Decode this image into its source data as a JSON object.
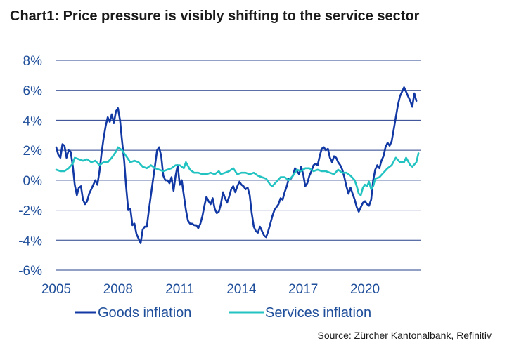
{
  "title": "Chart1: Price pressure is visibly shifting to the service sector",
  "source": "Source: Zürcher Kantonalbank, Refinitiv",
  "colors": {
    "goods": "#1238a4",
    "services": "#22c3c1",
    "grid": "#27408b",
    "text": "#1f4e9a"
  },
  "chart_data": {
    "type": "line",
    "title": "Chart1: Price pressure is visibly shifting to the service sector",
    "xlabel": "",
    "ylabel": "",
    "x_unit": "year",
    "xlim": [
      2005,
      2022.7
    ],
    "ylim": [
      -6,
      8
    ],
    "x_ticks": [
      2005,
      2008,
      2011,
      2014,
      2017,
      2020
    ],
    "x_tick_labels": [
      "2005",
      "2008",
      "2011",
      "2014",
      "2017",
      "2020"
    ],
    "y_ticks": [
      -6,
      -4,
      -2,
      0,
      2,
      4,
      6,
      8
    ],
    "y_tick_labels": [
      "-6%",
      "-4%",
      "-2%",
      "0%",
      "2%",
      "4%",
      "6%",
      "8%"
    ],
    "grid": "horizontal",
    "legend": "bottom",
    "series": [
      {
        "name": "Goods inflation",
        "color": "#1238a4",
        "points": [
          [
            2005.0,
            2.2
          ],
          [
            2005.1,
            1.7
          ],
          [
            2005.2,
            1.5
          ],
          [
            2005.3,
            2.4
          ],
          [
            2005.4,
            2.3
          ],
          [
            2005.5,
            1.5
          ],
          [
            2005.6,
            2.0
          ],
          [
            2005.7,
            1.9
          ],
          [
            2005.8,
            1.0
          ],
          [
            2005.9,
            -0.3
          ],
          [
            2006.0,
            -1.0
          ],
          [
            2006.1,
            -0.5
          ],
          [
            2006.2,
            -0.4
          ],
          [
            2006.3,
            -1.3
          ],
          [
            2006.4,
            -1.6
          ],
          [
            2006.5,
            -1.4
          ],
          [
            2006.6,
            -0.9
          ],
          [
            2006.7,
            -0.6
          ],
          [
            2006.8,
            -0.3
          ],
          [
            2006.9,
            0.0
          ],
          [
            2007.0,
            -0.3
          ],
          [
            2007.1,
            0.6
          ],
          [
            2007.2,
            1.8
          ],
          [
            2007.3,
            2.8
          ],
          [
            2007.4,
            3.6
          ],
          [
            2007.5,
            4.2
          ],
          [
            2007.6,
            3.9
          ],
          [
            2007.7,
            4.4
          ],
          [
            2007.8,
            3.8
          ],
          [
            2007.9,
            4.6
          ],
          [
            2008.0,
            4.8
          ],
          [
            2008.1,
            4.0
          ],
          [
            2008.2,
            2.6
          ],
          [
            2008.3,
            1.3
          ],
          [
            2008.4,
            -0.5
          ],
          [
            2008.5,
            -2.0
          ],
          [
            2008.6,
            -1.9
          ],
          [
            2008.7,
            -3.0
          ],
          [
            2008.8,
            -2.9
          ],
          [
            2008.9,
            -3.6
          ],
          [
            2009.0,
            -3.9
          ],
          [
            2009.1,
            -4.2
          ],
          [
            2009.2,
            -3.3
          ],
          [
            2009.3,
            -3.1
          ],
          [
            2009.4,
            -3.1
          ],
          [
            2009.5,
            -2.0
          ],
          [
            2009.6,
            -1.0
          ],
          [
            2009.7,
            0.0
          ],
          [
            2009.8,
            1.0
          ],
          [
            2009.9,
            2.0
          ],
          [
            2010.0,
            2.2
          ],
          [
            2010.1,
            1.6
          ],
          [
            2010.2,
            0.3
          ],
          [
            2010.3,
            0.0
          ],
          [
            2010.4,
            0.0
          ],
          [
            2010.5,
            -0.2
          ],
          [
            2010.6,
            0.2
          ],
          [
            2010.7,
            -0.7
          ],
          [
            2010.8,
            0.3
          ],
          [
            2010.9,
            1.0
          ],
          [
            2011.0,
            -0.3
          ],
          [
            2011.1,
            0.0
          ],
          [
            2011.2,
            -1.0
          ],
          [
            2011.3,
            -2.0
          ],
          [
            2011.4,
            -2.7
          ],
          [
            2011.5,
            -2.9
          ],
          [
            2011.6,
            -2.9
          ],
          [
            2011.7,
            -3.0
          ],
          [
            2011.8,
            -3.0
          ],
          [
            2011.9,
            -3.2
          ],
          [
            2012.0,
            -2.9
          ],
          [
            2012.1,
            -2.4
          ],
          [
            2012.2,
            -1.7
          ],
          [
            2012.3,
            -1.1
          ],
          [
            2012.4,
            -1.4
          ],
          [
            2012.5,
            -1.6
          ],
          [
            2012.6,
            -1.2
          ],
          [
            2012.7,
            -1.9
          ],
          [
            2012.8,
            -2.2
          ],
          [
            2012.9,
            -2.1
          ],
          [
            2013.0,
            -1.6
          ],
          [
            2013.1,
            -0.8
          ],
          [
            2013.2,
            -1.2
          ],
          [
            2013.3,
            -1.5
          ],
          [
            2013.4,
            -1.1
          ],
          [
            2013.5,
            -0.6
          ],
          [
            2013.6,
            -0.4
          ],
          [
            2013.7,
            -0.8
          ],
          [
            2013.8,
            -0.4
          ],
          [
            2013.9,
            -0.1
          ],
          [
            2014.0,
            -0.3
          ],
          [
            2014.1,
            -0.4
          ],
          [
            2014.2,
            -0.6
          ],
          [
            2014.3,
            -0.5
          ],
          [
            2014.4,
            -1.0
          ],
          [
            2014.5,
            -2.2
          ],
          [
            2014.6,
            -3.1
          ],
          [
            2014.7,
            -3.4
          ],
          [
            2014.8,
            -3.5
          ],
          [
            2014.9,
            -3.1
          ],
          [
            2015.0,
            -3.4
          ],
          [
            2015.1,
            -3.7
          ],
          [
            2015.2,
            -3.8
          ],
          [
            2015.3,
            -3.4
          ],
          [
            2015.4,
            -2.9
          ],
          [
            2015.5,
            -2.4
          ],
          [
            2015.6,
            -2.0
          ],
          [
            2015.7,
            -1.8
          ],
          [
            2015.8,
            -1.6
          ],
          [
            2015.9,
            -1.2
          ],
          [
            2016.0,
            -1.3
          ],
          [
            2016.1,
            -0.8
          ],
          [
            2016.2,
            -0.4
          ],
          [
            2016.3,
            0.1
          ],
          [
            2016.4,
            0.1
          ],
          [
            2016.5,
            0.3
          ],
          [
            2016.6,
            0.8
          ],
          [
            2016.7,
            0.6
          ],
          [
            2016.8,
            0.4
          ],
          [
            2016.9,
            0.9
          ],
          [
            2017.0,
            0.4
          ],
          [
            2017.1,
            -0.4
          ],
          [
            2017.2,
            -0.2
          ],
          [
            2017.3,
            0.3
          ],
          [
            2017.4,
            0.6
          ],
          [
            2017.5,
            1.0
          ],
          [
            2017.6,
            1.1
          ],
          [
            2017.7,
            1.0
          ],
          [
            2017.8,
            1.6
          ],
          [
            2017.9,
            2.1
          ],
          [
            2018.0,
            2.2
          ],
          [
            2018.1,
            2.0
          ],
          [
            2018.2,
            2.1
          ],
          [
            2018.3,
            1.5
          ],
          [
            2018.4,
            1.2
          ],
          [
            2018.5,
            1.6
          ],
          [
            2018.6,
            1.5
          ],
          [
            2018.7,
            1.2
          ],
          [
            2018.8,
            1.0
          ],
          [
            2018.9,
            0.7
          ],
          [
            2019.0,
            0.2
          ],
          [
            2019.1,
            -0.4
          ],
          [
            2019.2,
            -0.9
          ],
          [
            2019.3,
            -0.5
          ],
          [
            2019.4,
            -0.9
          ],
          [
            2019.5,
            -1.3
          ],
          [
            2019.6,
            -1.8
          ],
          [
            2019.7,
            -2.1
          ],
          [
            2019.8,
            -1.8
          ],
          [
            2019.9,
            -1.5
          ],
          [
            2020.0,
            -1.4
          ],
          [
            2020.1,
            -1.6
          ],
          [
            2020.2,
            -1.7
          ],
          [
            2020.3,
            -1.3
          ],
          [
            2020.4,
            0.0
          ],
          [
            2020.5,
            0.7
          ],
          [
            2020.6,
            1.0
          ],
          [
            2020.7,
            0.8
          ],
          [
            2020.8,
            1.3
          ],
          [
            2020.9,
            1.6
          ],
          [
            2021.0,
            2.2
          ],
          [
            2021.1,
            2.5
          ],
          [
            2021.2,
            2.3
          ],
          [
            2021.3,
            2.6
          ],
          [
            2021.4,
            3.4
          ],
          [
            2021.5,
            4.2
          ],
          [
            2021.6,
            5.0
          ],
          [
            2021.7,
            5.6
          ],
          [
            2021.8,
            5.9
          ],
          [
            2021.9,
            6.2
          ],
          [
            2022.0,
            5.9
          ],
          [
            2022.1,
            5.6
          ],
          [
            2022.2,
            5.3
          ],
          [
            2022.3,
            4.9
          ],
          [
            2022.4,
            5.8
          ],
          [
            2022.5,
            5.3
          ]
        ]
      },
      {
        "name": "Services inflation",
        "color": "#22c3c1",
        "points": [
          [
            2005.0,
            0.7
          ],
          [
            2005.2,
            0.6
          ],
          [
            2005.4,
            0.6
          ],
          [
            2005.6,
            0.8
          ],
          [
            2005.8,
            1.1
          ],
          [
            2005.9,
            1.5
          ],
          [
            2006.1,
            1.4
          ],
          [
            2006.3,
            1.3
          ],
          [
            2006.5,
            1.4
          ],
          [
            2006.7,
            1.2
          ],
          [
            2006.9,
            1.3
          ],
          [
            2007.1,
            1.0
          ],
          [
            2007.3,
            1.2
          ],
          [
            2007.5,
            1.2
          ],
          [
            2007.7,
            1.5
          ],
          [
            2007.9,
            1.9
          ],
          [
            2008.0,
            2.2
          ],
          [
            2008.2,
            2.0
          ],
          [
            2008.4,
            1.6
          ],
          [
            2008.6,
            1.2
          ],
          [
            2008.8,
            1.3
          ],
          [
            2009.0,
            1.2
          ],
          [
            2009.2,
            0.9
          ],
          [
            2009.4,
            0.8
          ],
          [
            2009.6,
            1.0
          ],
          [
            2009.8,
            0.8
          ],
          [
            2010.0,
            0.7
          ],
          [
            2010.2,
            0.6
          ],
          [
            2010.4,
            0.7
          ],
          [
            2010.6,
            0.8
          ],
          [
            2010.8,
            1.0
          ],
          [
            2011.0,
            1.0
          ],
          [
            2011.2,
            0.8
          ],
          [
            2011.3,
            1.2
          ],
          [
            2011.5,
            0.7
          ],
          [
            2011.7,
            0.5
          ],
          [
            2011.9,
            0.5
          ],
          [
            2012.1,
            0.4
          ],
          [
            2012.3,
            0.4
          ],
          [
            2012.5,
            0.5
          ],
          [
            2012.7,
            0.4
          ],
          [
            2012.9,
            0.6
          ],
          [
            2013.0,
            0.4
          ],
          [
            2013.2,
            0.5
          ],
          [
            2013.4,
            0.6
          ],
          [
            2013.6,
            0.8
          ],
          [
            2013.8,
            0.4
          ],
          [
            2014.0,
            0.5
          ],
          [
            2014.2,
            0.5
          ],
          [
            2014.4,
            0.4
          ],
          [
            2014.6,
            0.5
          ],
          [
            2014.8,
            0.3
          ],
          [
            2015.0,
            0.2
          ],
          [
            2015.2,
            0.1
          ],
          [
            2015.4,
            -0.3
          ],
          [
            2015.5,
            -0.4
          ],
          [
            2015.7,
            -0.1
          ],
          [
            2015.9,
            0.2
          ],
          [
            2016.1,
            0.2
          ],
          [
            2016.3,
            0.0
          ],
          [
            2016.5,
            0.3
          ],
          [
            2016.7,
            0.7
          ],
          [
            2016.9,
            0.6
          ],
          [
            2017.1,
            0.8
          ],
          [
            2017.3,
            0.8
          ],
          [
            2017.5,
            0.6
          ],
          [
            2017.7,
            0.7
          ],
          [
            2017.9,
            0.6
          ],
          [
            2018.1,
            0.6
          ],
          [
            2018.3,
            0.5
          ],
          [
            2018.5,
            0.4
          ],
          [
            2018.7,
            0.7
          ],
          [
            2018.9,
            0.5
          ],
          [
            2019.1,
            0.5
          ],
          [
            2019.3,
            0.3
          ],
          [
            2019.5,
            0.0
          ],
          [
            2019.6,
            -0.4
          ],
          [
            2019.7,
            -0.9
          ],
          [
            2019.8,
            -1.0
          ],
          [
            2019.9,
            -0.5
          ],
          [
            2020.0,
            -0.3
          ],
          [
            2020.1,
            -0.4
          ],
          [
            2020.2,
            -0.1
          ],
          [
            2020.3,
            -0.6
          ],
          [
            2020.4,
            -0.4
          ],
          [
            2020.5,
            0.1
          ],
          [
            2020.7,
            0.2
          ],
          [
            2020.9,
            0.5
          ],
          [
            2021.1,
            0.8
          ],
          [
            2021.3,
            1.0
          ],
          [
            2021.5,
            1.5
          ],
          [
            2021.7,
            1.2
          ],
          [
            2021.9,
            1.2
          ],
          [
            2022.0,
            1.5
          ],
          [
            2022.2,
            1.0
          ],
          [
            2022.3,
            0.9
          ],
          [
            2022.5,
            1.2
          ],
          [
            2022.6,
            1.8
          ]
        ]
      }
    ]
  }
}
